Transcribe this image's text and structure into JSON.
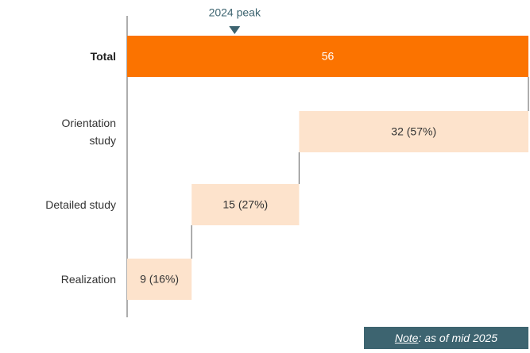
{
  "chart_data": {
    "type": "waterfall",
    "categories": [
      "Total",
      "Orientation study",
      "Detailed study",
      "Realization"
    ],
    "values": [
      56,
      32,
      15,
      9
    ],
    "value_labels": [
      "56",
      "32 (57%)",
      "15 (27%)",
      "9 (16%)"
    ],
    "colors": [
      "#fb7300",
      "#fde3cc",
      "#fde3cc",
      "#fde3cc"
    ],
    "xlim": [
      0,
      56
    ],
    "annotation": {
      "text": "2024 peak",
      "value": 15,
      "color": "#3d6470"
    },
    "note": {
      "label": "Note",
      "text": ": as of mid 2025"
    }
  }
}
